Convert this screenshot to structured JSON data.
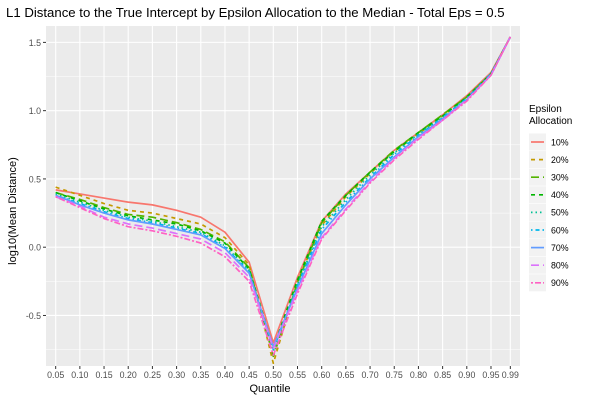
{
  "chart_data": {
    "type": "line",
    "title": "L1 Distance to the True Intercept by Epsilon Allocation to the Median - Total Eps = 0.5",
    "xlabel": "Quantile",
    "ylabel": "log10(Mean Distance)",
    "x": [
      0.05,
      0.1,
      0.15,
      0.2,
      0.25,
      0.3,
      0.35,
      0.4,
      0.45,
      0.5,
      0.55,
      0.6,
      0.65,
      0.7,
      0.75,
      0.8,
      0.85,
      0.9,
      0.95,
      0.99
    ],
    "x_tick_labels": [
      "0.05",
      "0.10",
      "0.15",
      "0.20",
      "0.25",
      "0.30",
      "0.35",
      "0.40",
      "0.45",
      "0.50",
      "0.55",
      "0.60",
      "0.65",
      "0.70",
      "0.75",
      "0.80",
      "0.85",
      "0.90",
      "0.95",
      "0.99"
    ],
    "y_ticks": [
      -0.5,
      0.0,
      0.5,
      1.0,
      1.5
    ],
    "y_tick_labels": [
      "-0.5",
      "0.0",
      "0.5",
      "1.0",
      "1.5"
    ],
    "xlim": [
      0.03,
      1.01
    ],
    "ylim": [
      -0.87,
      1.62
    ],
    "grid": true,
    "legend": {
      "title": "Epsilon\nAllocation",
      "placement": "right"
    },
    "series": [
      {
        "name": "10%",
        "color": "#F8766D",
        "dash": "solid",
        "values": [
          0.42,
          0.39,
          0.36,
          0.33,
          0.31,
          0.27,
          0.22,
          0.11,
          -0.11,
          -0.7,
          -0.22,
          0.19,
          0.39,
          0.55,
          0.71,
          0.84,
          0.97,
          1.11,
          1.28,
          1.54
        ]
      },
      {
        "name": "20%",
        "color": "#C49A00",
        "dash": "dashed",
        "values": [
          0.44,
          0.38,
          0.32,
          0.27,
          0.25,
          0.21,
          0.17,
          0.07,
          -0.13,
          -0.85,
          -0.25,
          0.16,
          0.37,
          0.54,
          0.7,
          0.83,
          0.96,
          1.1,
          1.27,
          1.54
        ]
      },
      {
        "name": "30%",
        "color": "#53B400",
        "dash": "longdash",
        "values": [
          0.4,
          0.35,
          0.29,
          0.24,
          0.22,
          0.18,
          0.13,
          0.04,
          -0.15,
          -0.8,
          -0.26,
          0.18,
          0.38,
          0.55,
          0.71,
          0.84,
          0.97,
          1.1,
          1.27,
          1.54
        ]
      },
      {
        "name": "40%",
        "color": "#00B600",
        "dash": "dashed",
        "values": [
          0.4,
          0.34,
          0.28,
          0.23,
          0.2,
          0.17,
          0.12,
          0.03,
          -0.16,
          -0.74,
          -0.24,
          0.19,
          0.38,
          0.55,
          0.7,
          0.84,
          0.96,
          1.1,
          1.27,
          1.54
        ]
      },
      {
        "name": "50%",
        "color": "#00C094",
        "dash": "dotted",
        "values": [
          0.39,
          0.33,
          0.27,
          0.22,
          0.19,
          0.15,
          0.11,
          0.01,
          -0.17,
          -0.76,
          -0.27,
          0.15,
          0.35,
          0.53,
          0.69,
          0.83,
          0.95,
          1.09,
          1.27,
          1.54
        ]
      },
      {
        "name": "60%",
        "color": "#00B6EB",
        "dash": "dotdash",
        "values": [
          0.38,
          0.32,
          0.26,
          0.21,
          0.18,
          0.14,
          0.1,
          0.0,
          -0.18,
          -0.75,
          -0.28,
          0.13,
          0.33,
          0.51,
          0.68,
          0.82,
          0.95,
          1.09,
          1.27,
          1.54
        ]
      },
      {
        "name": "70%",
        "color": "#619CFF",
        "dash": "solid",
        "values": [
          0.38,
          0.31,
          0.25,
          0.2,
          0.17,
          0.13,
          0.09,
          -0.01,
          -0.19,
          -0.73,
          -0.3,
          0.1,
          0.31,
          0.5,
          0.66,
          0.81,
          0.94,
          1.08,
          1.26,
          1.54
        ]
      },
      {
        "name": "80%",
        "color": "#DB72FB",
        "dash": "longdash",
        "values": [
          0.37,
          0.3,
          0.22,
          0.17,
          0.14,
          0.1,
          0.06,
          -0.04,
          -0.22,
          -0.74,
          -0.32,
          0.07,
          0.28,
          0.48,
          0.65,
          0.8,
          0.93,
          1.08,
          1.26,
          1.54
        ]
      },
      {
        "name": "90%",
        "color": "#FF61C3",
        "dash": "twodash",
        "values": [
          0.37,
          0.29,
          0.21,
          0.15,
          0.12,
          0.08,
          0.03,
          -0.07,
          -0.25,
          -0.79,
          -0.34,
          0.06,
          0.27,
          0.47,
          0.64,
          0.79,
          0.93,
          1.07,
          1.26,
          1.54
        ]
      }
    ]
  }
}
